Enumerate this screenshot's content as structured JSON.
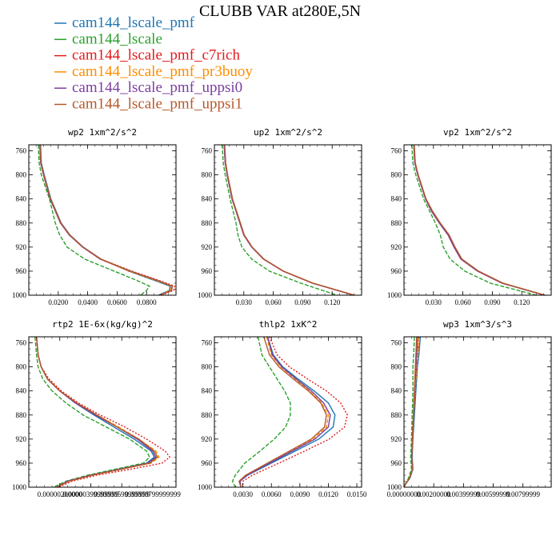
{
  "figure": {
    "title": "CLUBB VAR at280E,5N"
  },
  "legend": [
    {
      "name": "cam144_lscale_pmf",
      "color": "#1f77b4",
      "dash": "solid"
    },
    {
      "name": "cam144_lscale",
      "color": "#2ca02c",
      "dash": "dashed"
    },
    {
      "name": "cam144_lscale_pmf_c7rich",
      "color": "#e31a1c",
      "dash": "dotted"
    },
    {
      "name": "cam144_lscale_pmf_pr3buoy",
      "color": "#ff8c00",
      "dash": "dashed"
    },
    {
      "name": "cam144_lscale_pmf_uppsi0",
      "color": "#7b3fa0",
      "dash": "solid"
    },
    {
      "name": "cam144_lscale_pmf_uppsi1",
      "color": "#b5582b",
      "dash": "solid"
    }
  ],
  "chart_data": [
    {
      "type": "line",
      "title": "wp2  1xm^2/s^2",
      "xlim": [
        0,
        0.1
      ],
      "ylim": [
        1000,
        750
      ],
      "yticks": [
        "760",
        "800",
        "840",
        "880",
        "920",
        "960",
        "1000"
      ],
      "ytick_values": [
        760,
        800,
        840,
        880,
        920,
        960,
        1000
      ],
      "xticks": [
        "0.0200",
        "0.0400",
        "0.0600",
        "0.0800"
      ],
      "xtick_values": [
        0.02,
        0.04,
        0.06,
        0.08
      ],
      "y": [
        750,
        780,
        800,
        840,
        880,
        900,
        920,
        940,
        960,
        975,
        985,
        992,
        1000
      ],
      "series": [
        {
          "name": "cam144_lscale_pmf",
          "values": [
            0.008,
            0.0085,
            0.0105,
            0.015,
            0.022,
            0.028,
            0.037,
            0.049,
            0.068,
            0.085,
            0.096,
            0.0955,
            0.088
          ]
        },
        {
          "name": "cam144_lscale",
          "values": [
            0.0065,
            0.007,
            0.0085,
            0.014,
            0.018,
            0.021,
            0.026,
            0.038,
            0.058,
            0.073,
            0.082,
            0.08,
            0.076
          ]
        },
        {
          "name": "cam144_lscale_pmf_c7rich",
          "values": [
            0.0075,
            0.008,
            0.01,
            0.0145,
            0.0215,
            0.0275,
            0.0365,
            0.049,
            0.07,
            0.088,
            0.099,
            0.0985,
            0.09
          ]
        },
        {
          "name": "cam144_lscale_pmf_pr3buoy",
          "values": [
            0.0075,
            0.0082,
            0.01,
            0.0145,
            0.0215,
            0.0275,
            0.0365,
            0.0485,
            0.068,
            0.086,
            0.097,
            0.096,
            0.089
          ]
        },
        {
          "name": "cam144_lscale_pmf_uppsi0",
          "values": [
            0.0075,
            0.008,
            0.01,
            0.0145,
            0.0215,
            0.0275,
            0.0365,
            0.0485,
            0.069,
            0.087,
            0.0975,
            0.097,
            0.0895
          ]
        },
        {
          "name": "cam144_lscale_pmf_uppsi1",
          "values": [
            0.0075,
            0.0082,
            0.0102,
            0.0148,
            0.0218,
            0.0278,
            0.0368,
            0.049,
            0.069,
            0.087,
            0.0975,
            0.097,
            0.0895
          ]
        }
      ]
    },
    {
      "type": "line",
      "title": "up2  1xm^2/s^2",
      "xlim": [
        0,
        0.15
      ],
      "ylim": [
        1000,
        750
      ],
      "yticks": [
        "760",
        "800",
        "840",
        "880",
        "920",
        "960",
        "1000"
      ],
      "ytick_values": [
        760,
        800,
        840,
        880,
        920,
        960,
        1000
      ],
      "xticks": [
        "0.030",
        "0.060",
        "0.090",
        "0.120"
      ],
      "xtick_values": [
        0.03,
        0.06,
        0.09,
        0.12
      ],
      "y": [
        750,
        780,
        800,
        840,
        860,
        880,
        900,
        920,
        940,
        960,
        980,
        1000
      ],
      "series": [
        {
          "name": "cam144_lscale_pmf",
          "values": [
            0.01,
            0.011,
            0.013,
            0.018,
            0.022,
            0.026,
            0.03,
            0.038,
            0.05,
            0.07,
            0.1,
            0.142
          ]
        },
        {
          "name": "cam144_lscale",
          "values": [
            0.008,
            0.009,
            0.011,
            0.016,
            0.019,
            0.022,
            0.024,
            0.028,
            0.038,
            0.056,
            0.088,
            0.125
          ]
        },
        {
          "name": "cam144_lscale_pmf_c7rich",
          "values": [
            0.01,
            0.011,
            0.013,
            0.018,
            0.022,
            0.026,
            0.03,
            0.038,
            0.05,
            0.07,
            0.1,
            0.142
          ]
        },
        {
          "name": "cam144_lscale_pmf_pr3buoy",
          "values": [
            0.01,
            0.011,
            0.013,
            0.018,
            0.022,
            0.026,
            0.03,
            0.038,
            0.05,
            0.07,
            0.1,
            0.142
          ]
        },
        {
          "name": "cam144_lscale_pmf_uppsi0",
          "values": [
            0.01,
            0.011,
            0.013,
            0.018,
            0.022,
            0.026,
            0.03,
            0.038,
            0.05,
            0.07,
            0.1,
            0.142
          ]
        },
        {
          "name": "cam144_lscale_pmf_uppsi1",
          "values": [
            0.0105,
            0.0115,
            0.0135,
            0.0185,
            0.0225,
            0.0265,
            0.0305,
            0.0385,
            0.0505,
            0.0705,
            0.1005,
            0.143
          ]
        }
      ]
    },
    {
      "type": "line",
      "title": "vp2  1xm^2/s^2",
      "xlim": [
        0,
        0.15
      ],
      "ylim": [
        1000,
        750
      ],
      "yticks": [
        "760",
        "800",
        "840",
        "880",
        "920",
        "960",
        "1000"
      ],
      "ytick_values": [
        760,
        800,
        840,
        880,
        920,
        960,
        1000
      ],
      "xticks": [
        "0.030",
        "0.060",
        "0.090",
        "0.120"
      ],
      "xtick_values": [
        0.03,
        0.06,
        0.09,
        0.12
      ],
      "y": [
        750,
        780,
        800,
        840,
        860,
        880,
        900,
        920,
        940,
        960,
        980,
        1000
      ],
      "series": [
        {
          "name": "cam144_lscale_pmf",
          "values": [
            0.01,
            0.011,
            0.014,
            0.022,
            0.028,
            0.036,
            0.045,
            0.051,
            0.058,
            0.075,
            0.1,
            0.143
          ]
        },
        {
          "name": "cam144_lscale",
          "values": [
            0.008,
            0.009,
            0.012,
            0.02,
            0.026,
            0.032,
            0.037,
            0.04,
            0.047,
            0.062,
            0.088,
            0.135
          ]
        },
        {
          "name": "cam144_lscale_pmf_c7rich",
          "values": [
            0.01,
            0.011,
            0.014,
            0.022,
            0.028,
            0.036,
            0.045,
            0.051,
            0.058,
            0.075,
            0.1,
            0.143
          ]
        },
        {
          "name": "cam144_lscale_pmf_pr3buoy",
          "values": [
            0.01,
            0.011,
            0.014,
            0.022,
            0.028,
            0.036,
            0.045,
            0.051,
            0.058,
            0.075,
            0.1,
            0.143
          ]
        },
        {
          "name": "cam144_lscale_pmf_uppsi0",
          "values": [
            0.01,
            0.011,
            0.014,
            0.022,
            0.028,
            0.036,
            0.045,
            0.051,
            0.058,
            0.075,
            0.1,
            0.143
          ]
        },
        {
          "name": "cam144_lscale_pmf_uppsi1",
          "values": [
            0.0105,
            0.0115,
            0.0145,
            0.0225,
            0.029,
            0.037,
            0.046,
            0.052,
            0.059,
            0.076,
            0.101,
            0.144
          ]
        }
      ]
    },
    {
      "type": "line",
      "title": "rtp2  1E-6x(kg/kg)^2",
      "xlim": [
        0,
        9.5e-06
      ],
      "ylim": [
        1000,
        750
      ],
      "yticks": [
        "760",
        "800",
        "840",
        "880",
        "920",
        "960",
        "1000"
      ],
      "ytick_values": [
        760,
        800,
        840,
        880,
        920,
        960,
        1000
      ],
      "xticks": [
        "0.00000200000",
        "0.00000399999999",
        "0.00000599999999",
        "0.00000799999999"
      ],
      "xtick_values": [
        2e-06,
        4e-06,
        6e-06,
        8e-06
      ],
      "y": [
        750,
        780,
        800,
        820,
        840,
        860,
        880,
        900,
        920,
        940,
        950,
        960,
        970,
        980,
        990,
        1000
      ],
      "series": [
        {
          "name": "cam144_lscale_pmf",
          "values": [
            5e-07,
            6e-07,
            8e-07,
            1.2e-06,
            2e-06,
            3e-06,
            4.2e-06,
            5.5e-06,
            6.8e-06,
            7.9e-06,
            8.1e-06,
            7.6e-06,
            5.8e-06,
            4e-06,
            2.5e-06,
            1.8e-06
          ]
        },
        {
          "name": "cam144_lscale",
          "values": [
            4e-07,
            5e-07,
            6e-07,
            9e-07,
            1.5e-06,
            2.4e-06,
            3.5e-06,
            5e-06,
            6.5e-06,
            7.6e-06,
            7.8e-06,
            7.4e-06,
            5.6e-06,
            3.8e-06,
            2.4e-06,
            1.6e-06
          ]
        },
        {
          "name": "cam144_lscale_pmf_c7rich",
          "values": [
            5e-07,
            6e-07,
            8e-07,
            1.3e-06,
            2.1e-06,
            3.2e-06,
            4.6e-06,
            6.2e-06,
            7.6e-06,
            8.8e-06,
            9.1e-06,
            8.6e-06,
            6.6e-06,
            4.4e-06,
            2.8e-06,
            1.9e-06
          ]
        },
        {
          "name": "cam144_lscale_pmf_pr3buoy",
          "values": [
            5e-07,
            6e-07,
            8e-07,
            1.2e-06,
            2e-06,
            3.1e-06,
            4.4e-06,
            5.8e-06,
            7.1e-06,
            8.2e-06,
            8.4e-06,
            7.9e-06,
            6e-06,
            4.1e-06,
            2.6e-06,
            1.8e-06
          ]
        },
        {
          "name": "cam144_lscale_pmf_uppsi0",
          "values": [
            5e-07,
            6e-07,
            8e-07,
            1.2e-06,
            2e-06,
            3e-06,
            4.3e-06,
            5.7e-06,
            7e-06,
            8e-06,
            8.2e-06,
            7.7e-06,
            5.9e-06,
            4e-06,
            2.5e-06,
            1.8e-06
          ]
        },
        {
          "name": "cam144_lscale_pmf_uppsi1",
          "values": [
            5e-07,
            6e-07,
            8e-07,
            1.2e-06,
            2e-06,
            3.1e-06,
            4.4e-06,
            5.7e-06,
            7.1e-06,
            8.1e-06,
            8.3e-06,
            7.8e-06,
            6e-06,
            4.1e-06,
            2.6e-06,
            1.8e-06
          ]
        }
      ]
    },
    {
      "type": "line",
      "title": "thlp2  1xK^2",
      "xlim": [
        0,
        0.0155
      ],
      "ylim": [
        1000,
        750
      ],
      "yticks": [
        "760",
        "800",
        "840",
        "880",
        "920",
        "960",
        "1000"
      ],
      "ytick_values": [
        760,
        800,
        840,
        880,
        920,
        960,
        1000
      ],
      "xticks": [
        "0.0030",
        "0.0060",
        "0.0090",
        "0.0120",
        "0.0150"
      ],
      "xtick_values": [
        0.003,
        0.006,
        0.009,
        0.012,
        0.015
      ],
      "y": [
        750,
        780,
        800,
        820,
        840,
        860,
        880,
        900,
        920,
        940,
        960,
        980,
        990,
        1000
      ],
      "series": [
        {
          "name": "cam144_lscale_pmf",
          "values": [
            0.0056,
            0.0062,
            0.0072,
            0.0088,
            0.0105,
            0.012,
            0.0127,
            0.0125,
            0.011,
            0.0085,
            0.006,
            0.0035,
            0.0027,
            0.0028
          ]
        },
        {
          "name": "cam144_lscale",
          "values": [
            0.0046,
            0.005,
            0.0058,
            0.0066,
            0.0074,
            0.008,
            0.008,
            0.0075,
            0.0063,
            0.0048,
            0.0032,
            0.0022,
            0.0019,
            0.0022
          ]
        },
        {
          "name": "cam144_lscale_pmf_c7rich",
          "values": [
            0.0058,
            0.0066,
            0.0079,
            0.0098,
            0.0118,
            0.0133,
            0.014,
            0.0137,
            0.0121,
            0.0095,
            0.0068,
            0.004,
            0.003,
            0.003
          ]
        },
        {
          "name": "cam144_lscale_pmf_pr3buoy",
          "values": [
            0.0055,
            0.006,
            0.007,
            0.0085,
            0.01,
            0.0113,
            0.012,
            0.0118,
            0.0104,
            0.008,
            0.0056,
            0.0033,
            0.0026,
            0.0028
          ]
        },
        {
          "name": "cam144_lscale_pmf_uppsi0",
          "values": [
            0.0056,
            0.0061,
            0.0071,
            0.0086,
            0.0102,
            0.0115,
            0.0122,
            0.012,
            0.0106,
            0.0082,
            0.0058,
            0.0034,
            0.0027,
            0.0028
          ]
        },
        {
          "name": "cam144_lscale_pmf_uppsi1",
          "values": [
            0.0052,
            0.0058,
            0.0068,
            0.0083,
            0.0099,
            0.0112,
            0.0118,
            0.0116,
            0.0102,
            0.0079,
            0.0056,
            0.0033,
            0.0026,
            0.0028
          ]
        }
      ]
    },
    {
      "type": "line",
      "title": "wp3  1xm^3/s^3",
      "xlim": [
        0,
        0.0099
      ],
      "ylim": [
        1000,
        750
      ],
      "yticks": [
        "760",
        "800",
        "840",
        "880",
        "920",
        "960",
        "1000"
      ],
      "ytick_values": [
        760,
        800,
        840,
        880,
        920,
        960,
        1000
      ],
      "xticks": [
        "0.00000000",
        "0.00200000",
        "0.00399999",
        "0.00599999",
        "0.00799999"
      ],
      "xtick_values": [
        0,
        0.002,
        0.004,
        0.006,
        0.008
      ],
      "y": [
        750,
        780,
        800,
        840,
        880,
        920,
        950,
        970,
        985,
        995,
        1000
      ],
      "series": [
        {
          "name": "cam144_lscale_pmf",
          "values": [
            0.0011,
            0.001,
            0.0009,
            0.0008,
            0.0007,
            0.0006,
            0.00055,
            0.0006,
            0.0004,
            0.0001,
            0.0
          ]
        },
        {
          "name": "cam144_lscale",
          "values": [
            0.0007,
            0.00065,
            0.0006,
            0.0006,
            0.00055,
            0.0005,
            0.00045,
            0.0005,
            0.0003,
            8e-05,
            0.0
          ]
        },
        {
          "name": "cam144_lscale_pmf_c7rich",
          "values": [
            0.001,
            0.00092,
            0.00085,
            0.00075,
            0.00065,
            0.00058,
            0.00052,
            0.00058,
            0.00038,
            0.0001,
            0.0
          ]
        },
        {
          "name": "cam144_lscale_pmf_pr3buoy",
          "values": [
            0.001,
            0.00092,
            0.00085,
            0.00075,
            0.00065,
            0.00058,
            0.00052,
            0.00058,
            0.00038,
            0.0001,
            0.0
          ]
        },
        {
          "name": "cam144_lscale_pmf_uppsi0",
          "values": [
            0.0009,
            0.00085,
            0.0008,
            0.00072,
            0.00064,
            0.00057,
            0.00052,
            0.00057,
            0.00038,
            0.0001,
            0.0
          ]
        },
        {
          "name": "cam144_lscale_pmf_uppsi1",
          "values": [
            0.00085,
            0.0008,
            0.00076,
            0.0007,
            0.00063,
            0.00056,
            0.00051,
            0.00056,
            0.00037,
            0.0001,
            0.0
          ]
        }
      ]
    }
  ]
}
